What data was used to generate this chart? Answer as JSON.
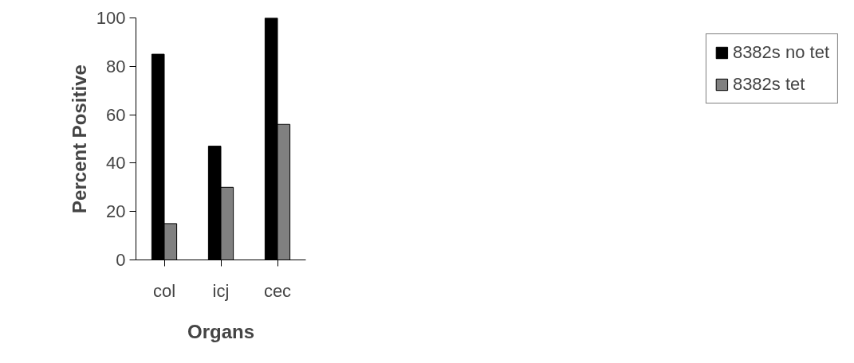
{
  "chart_data": {
    "type": "bar",
    "xlabel": "Organs",
    "ylabel": "Percent Positive",
    "categories": [
      "col",
      "icj",
      "cec"
    ],
    "series": [
      {
        "name": "8382s no tet",
        "color": "#000000",
        "values": [
          85,
          47,
          100
        ]
      },
      {
        "name": "8382s tet",
        "color": "#808080",
        "values": [
          15,
          30,
          56
        ]
      }
    ],
    "ylim": [
      0,
      100
    ],
    "yticks": [
      0,
      20,
      40,
      60,
      80,
      100
    ],
    "grid": false,
    "legend": "right"
  }
}
